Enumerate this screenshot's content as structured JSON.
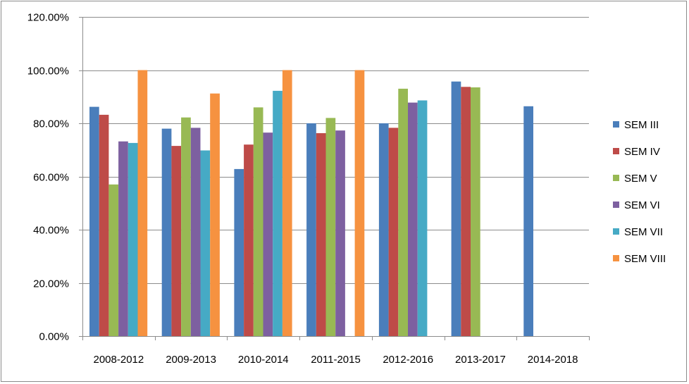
{
  "chart_data": {
    "type": "bar",
    "title": "",
    "xlabel": "",
    "ylabel": "",
    "ylim": [
      0,
      120
    ],
    "y_tick_labels": [
      "0.00%",
      "20.00%",
      "40.00%",
      "60.00%",
      "80.00%",
      "100.00%",
      "120.00%"
    ],
    "y_tick_values": [
      0,
      20,
      40,
      60,
      80,
      100,
      120
    ],
    "grid": "horizontal",
    "legend_position": "right",
    "categories": [
      "2008-2012",
      "2009-2013",
      "2010-2014",
      "2011-2015",
      "2012-2016",
      "2013-2017",
      "2014-2018"
    ],
    "series": [
      {
        "name": "SEM III",
        "color": "#4a7ebb",
        "values": [
          86.2,
          78.0,
          62.8,
          80.0,
          80.0,
          95.7,
          86.4
        ]
      },
      {
        "name": "SEM IV",
        "color": "#be4b48",
        "values": [
          83.2,
          71.5,
          72.0,
          76.3,
          78.3,
          93.7,
          null
        ]
      },
      {
        "name": "SEM V",
        "color": "#98b954",
        "values": [
          57.0,
          82.2,
          86.0,
          82.0,
          93.0,
          93.5,
          null
        ]
      },
      {
        "name": "SEM VI",
        "color": "#7d60a0",
        "values": [
          73.2,
          78.3,
          76.5,
          77.3,
          87.8,
          null,
          null
        ]
      },
      {
        "name": "SEM VII",
        "color": "#46aac5",
        "values": [
          72.6,
          69.8,
          92.2,
          null,
          88.6,
          null,
          null
        ]
      },
      {
        "name": "SEM VIII",
        "color": "#f69240",
        "values": [
          100.0,
          91.2,
          100.0,
          100.0,
          null,
          null,
          null
        ]
      }
    ]
  }
}
